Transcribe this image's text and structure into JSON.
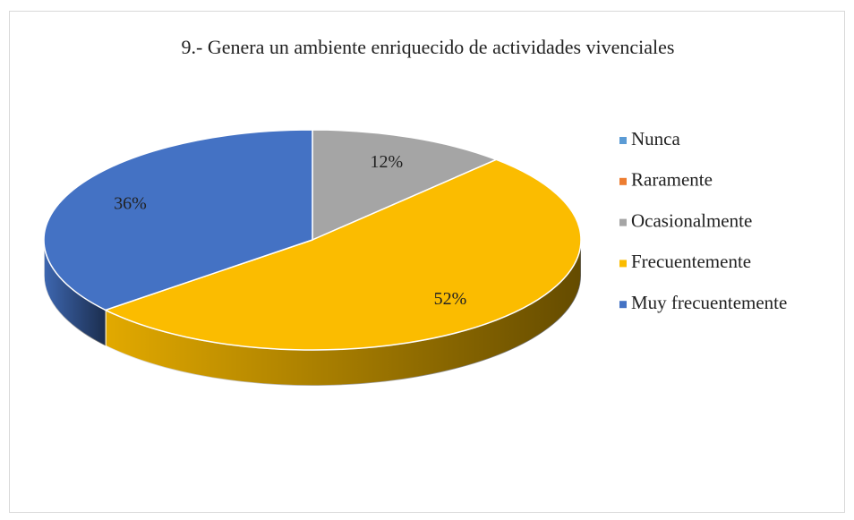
{
  "chart_data": {
    "type": "pie",
    "title": "9.- Genera un ambiente enriquecido de actividades vivenciales",
    "categories": [
      "Nunca",
      "Raramente",
      "Ocasionalmente",
      "Frecuentemente",
      "Muy frecuentemente"
    ],
    "values": [
      0,
      0,
      12,
      52,
      36
    ],
    "value_labels": [
      null,
      null,
      "12%",
      "52%",
      "36%"
    ],
    "colors": [
      "#5b9bd5",
      "#ed7d31",
      "#a5a5a5",
      "#fbbc00",
      "#4472c4"
    ],
    "legend": "right"
  }
}
